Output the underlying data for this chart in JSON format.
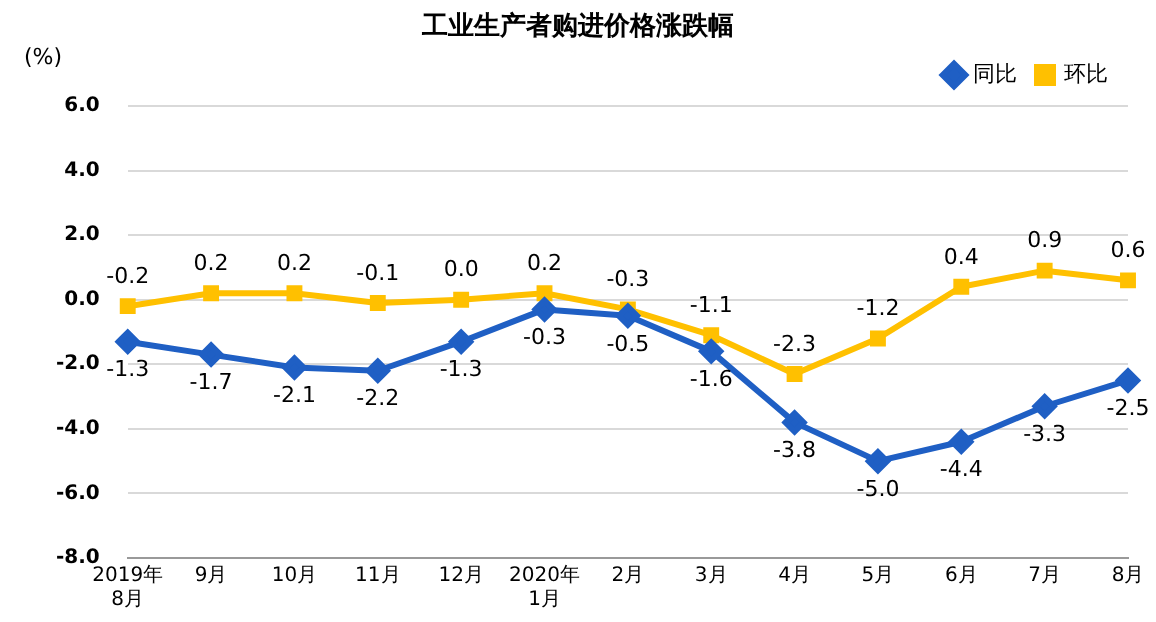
{
  "chart_data": {
    "type": "line",
    "title": "工业生产者购进价格涨跌幅",
    "ylabel": "(%)",
    "categories": [
      "2019年\n8月",
      "9月",
      "10月",
      "11月",
      "12月",
      "2020年\n1月",
      "2月",
      "3月",
      "4月",
      "5月",
      "6月",
      "7月",
      "8月"
    ],
    "series": [
      {
        "name": "同比",
        "color": "#1f5fc4",
        "marker": "diamond",
        "values": [
          -1.3,
          -1.7,
          -2.1,
          -2.2,
          -1.3,
          -0.3,
          -0.5,
          -1.6,
          -3.8,
          -5.0,
          -4.4,
          -3.3,
          -2.5
        ],
        "value_labels": [
          "-1.3",
          "-1.7",
          "-2.1",
          "-2.2",
          "-1.3",
          "-0.3",
          "-0.5",
          "-1.6",
          "-3.8",
          "-5.0",
          "-4.4",
          "-3.3",
          "-2.5"
        ]
      },
      {
        "name": "环比",
        "color": "#ffc000",
        "marker": "square",
        "values": [
          -0.2,
          0.2,
          0.2,
          -0.1,
          0.0,
          0.2,
          -0.3,
          -1.1,
          -2.3,
          -1.2,
          0.4,
          0.9,
          0.6
        ],
        "value_labels": [
          "-0.2",
          "0.2",
          "0.2",
          "-0.1",
          "0.0",
          "0.2",
          "-0.3",
          "-1.1",
          "-2.3",
          "-1.2",
          "0.4",
          "0.9",
          "0.6"
        ]
      }
    ],
    "ylim": [
      -8,
      6
    ],
    "yticks": [
      {
        "value": -8,
        "label": "-8.0"
      },
      {
        "value": -6,
        "label": "-6.0"
      },
      {
        "value": -4,
        "label": "-4.0"
      },
      {
        "value": -2,
        "label": "-2.0"
      },
      {
        "value": 0,
        "label": "0.0"
      },
      {
        "value": 2,
        "label": "2.0"
      },
      {
        "value": 4,
        "label": "4.0"
      },
      {
        "value": 6,
        "label": "6.0"
      }
    ],
    "grid": "y",
    "legend": "top right"
  }
}
